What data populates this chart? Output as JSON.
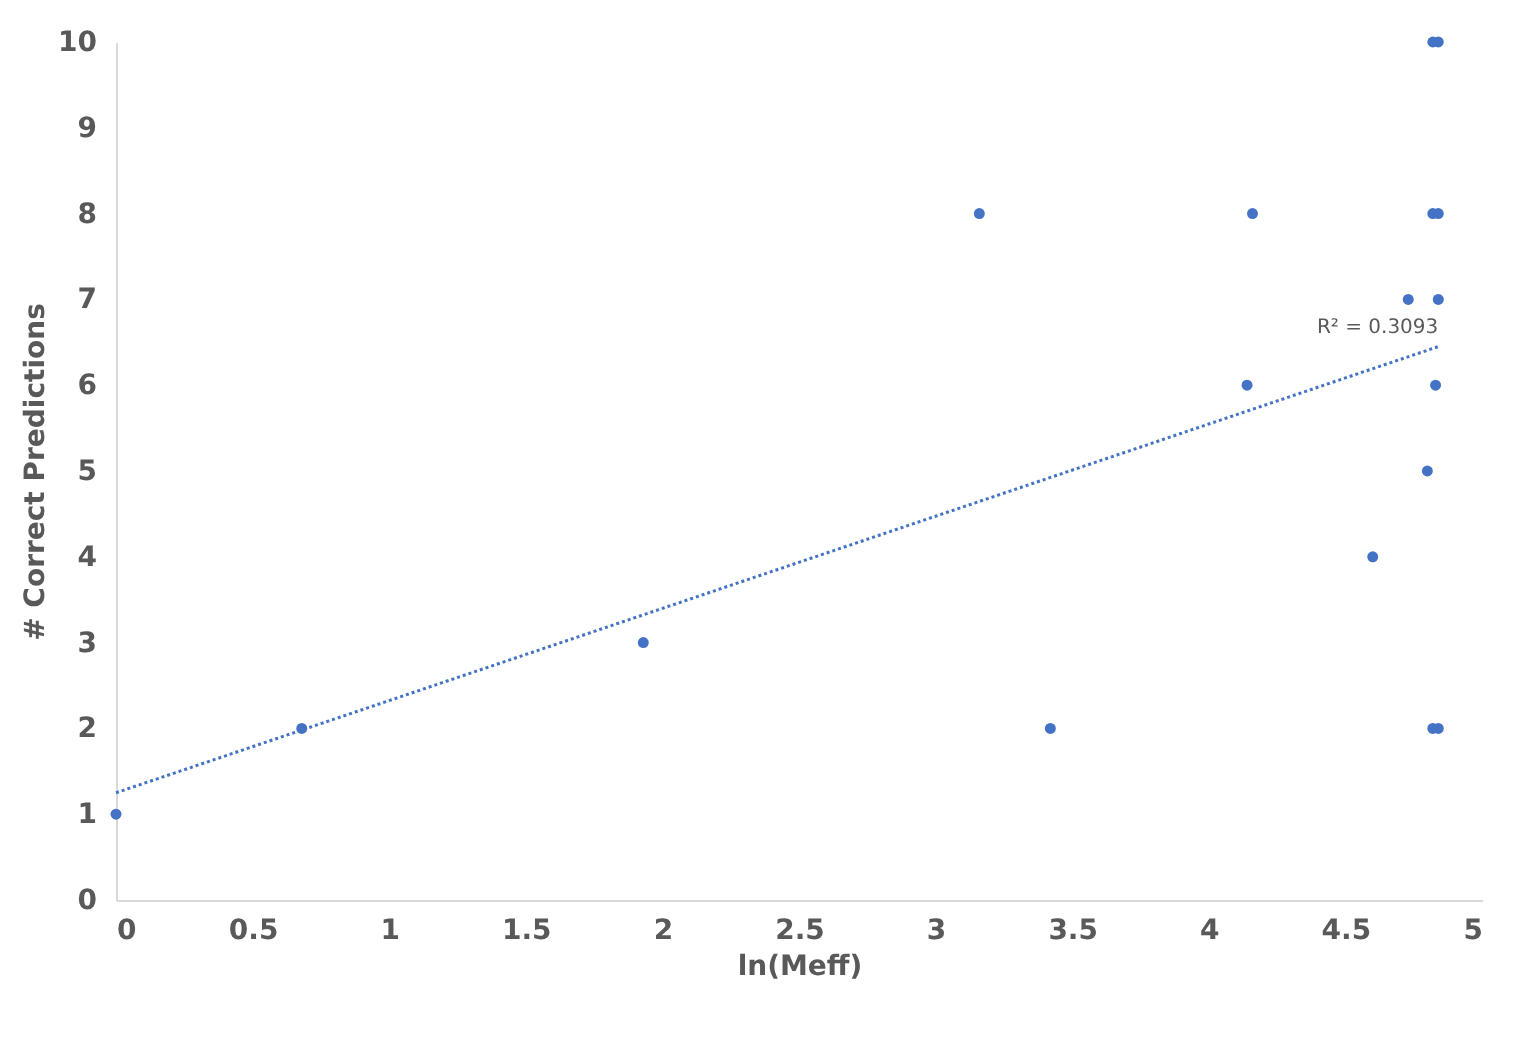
{
  "chart_data": {
    "type": "scatter",
    "xlabel": "ln(Meff)",
    "ylabel": "# Correct Predictions",
    "xlim": [
      0,
      5
    ],
    "xticks": [
      0,
      0.5,
      1,
      1.5,
      2,
      2.5,
      3,
      3.5,
      4,
      4.5,
      5
    ],
    "ylim": [
      0,
      10
    ],
    "yticks": [
      0,
      1,
      2,
      3,
      4,
      5,
      6,
      7,
      8,
      9,
      10
    ],
    "grid": false,
    "series": [
      {
        "color": "#4472c4",
        "marker": "circle",
        "x": [
          0,
          0.68,
          1.93,
          3.16,
          3.42,
          4.16,
          4.14,
          4.6,
          4.73,
          4.8,
          4.82,
          4.84,
          4.82,
          4.84,
          4.84,
          4.83,
          4.82,
          4.84
        ],
        "values": [
          1,
          2,
          3,
          8,
          2,
          8,
          6,
          4,
          7,
          5,
          10,
          10,
          8,
          8,
          7,
          6,
          2,
          2
        ]
      },
      {
        "type": "line",
        "color": "#4472c4",
        "line_style": "dotted",
        "marker": "none",
        "x": [
          0,
          4.84
        ],
        "values": [
          1.25,
          6.45
        ]
      }
    ],
    "annotations": [
      {
        "text": "R² = 0.3093",
        "x": 4.84,
        "y": 6.45
      }
    ]
  }
}
